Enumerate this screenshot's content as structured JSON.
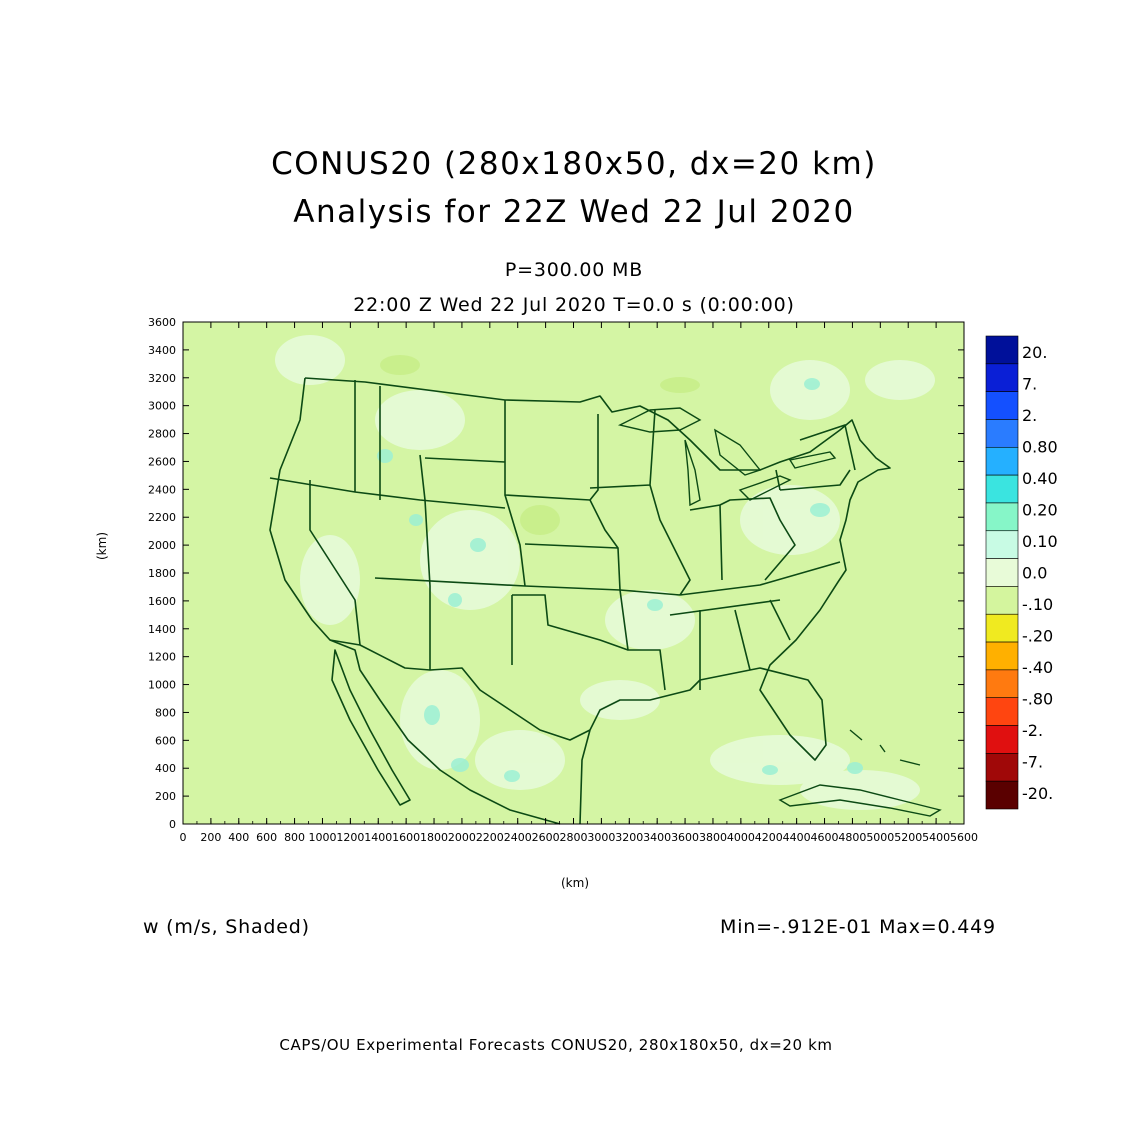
{
  "title": {
    "line1": "CONUS20 (280x180x50, dx=20 km)",
    "line2": "Analysis for 22Z Wed 22 Jul 2020"
  },
  "subtitle": {
    "level": "P=300.00 MB",
    "time": "22:00 Z Wed 22 Jul 2020   T=0.0 s (0:00:00)"
  },
  "axes": {
    "xlabel": "(km)",
    "ylabel": "(km)",
    "xticks": [
      "0",
      "200",
      "400",
      "600",
      "800",
      "1000",
      "1200",
      "1400",
      "1600",
      "1800",
      "2000",
      "2200",
      "2400",
      "2600",
      "2800",
      "3000",
      "3200",
      "3400",
      "3600",
      "3800",
      "4000",
      "4200",
      "4400",
      "4600",
      "4800",
      "5000",
      "5200",
      "5400",
      "5600"
    ],
    "yticks": [
      "0",
      "200",
      "400",
      "600",
      "800",
      "1000",
      "1200",
      "1400",
      "1600",
      "1800",
      "2000",
      "2200",
      "2400",
      "2600",
      "2800",
      "3000",
      "3200",
      "3400",
      "3600"
    ],
    "xlim": [
      0,
      5600
    ],
    "ylim": [
      0,
      3600
    ]
  },
  "colorbar": {
    "labels": [
      "20.",
      "7.",
      "2.",
      "0.80",
      "0.40",
      "0.20",
      "0.10",
      "0.0",
      "-.10",
      "-.20",
      "-.40",
      "-.80",
      "-2.",
      "-7.",
      "-20."
    ],
    "colors": [
      "#00109a",
      "#0a1fd6",
      "#1450ff",
      "#2a7cff",
      "#25b0ff",
      "#3ae4e0",
      "#86f6c8",
      "#c8fbe4",
      "#e8fbd8",
      "#d4f59e",
      "#f0ea20",
      "#ffb000",
      "#ff7a10",
      "#ff4510",
      "#e01010",
      "#a00808",
      "#5a0000"
    ]
  },
  "field": {
    "variable": "w (m/s, Shaded)",
    "minmax": "Min=-.912E-01 Max=0.449",
    "background": "#d4f5a4",
    "boundary_color": "#0c4a14"
  },
  "footer": "CAPS/OU Experimental Forecasts  CONUS20, 280x180x50, dx=20 km"
}
